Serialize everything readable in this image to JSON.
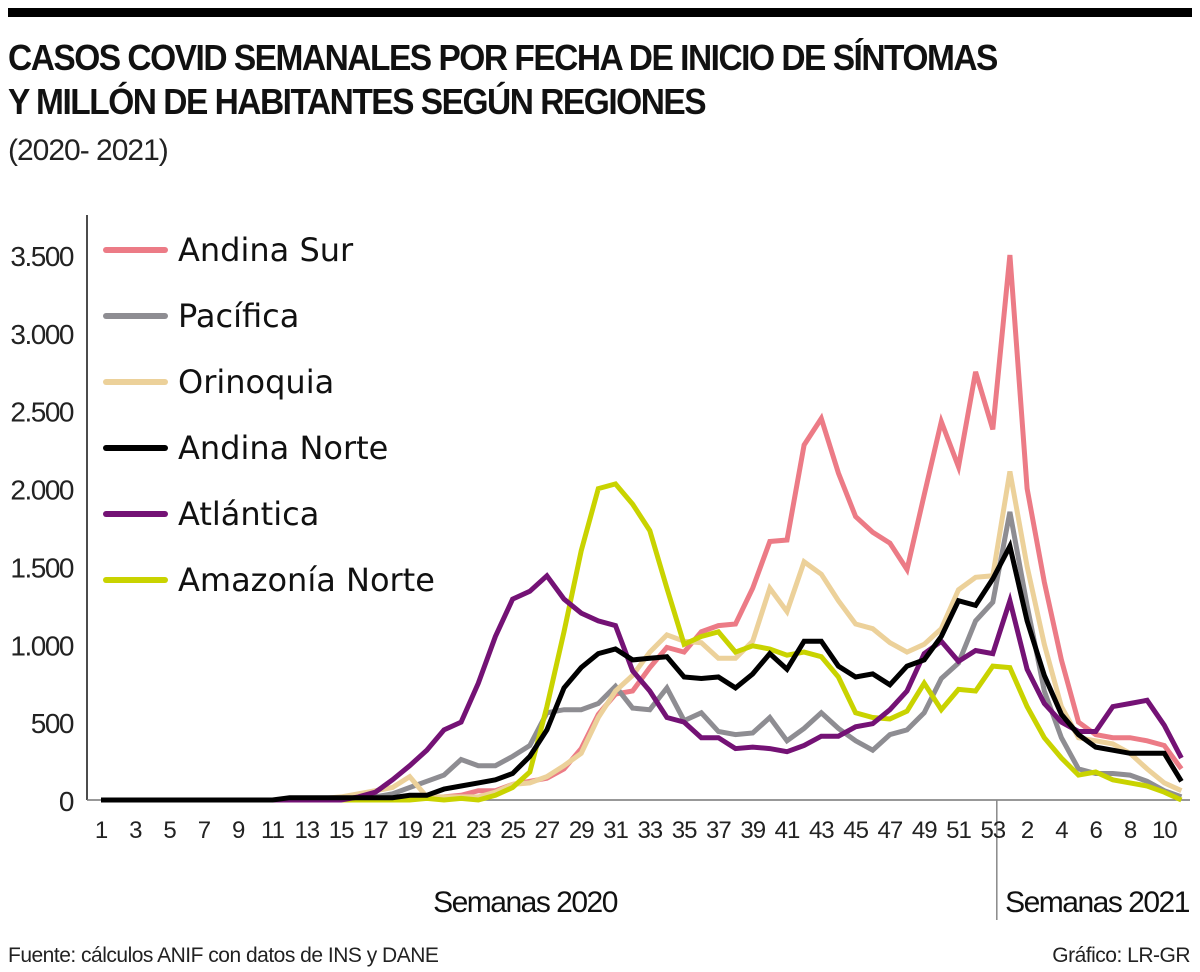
{
  "header": {
    "title_line1": "CASOS COVID SEMANALES POR FECHA DE INICIO DE SÍNTOMAS",
    "title_line2": "Y MILLÓN DE HABITANTES SEGÚN REGIONES",
    "subtitle": "(2020- 2021)"
  },
  "footer": {
    "source": "Fuente: cálculos ANIF con datos de INS y DANE",
    "credit": "Gráfico: LR-GR"
  },
  "chart_data": {
    "type": "line",
    "title": "CASOS COVID SEMANALES POR FECHA DE INICIO DE SÍNTOMAS Y MILLÓN DE HABITANTES SEGÚN REGIONES",
    "subtitle": "(2020- 2021)",
    "xlabel_groups": [
      "Semanas 2020",
      "Semanas 2021"
    ],
    "ylabel": "",
    "ylim": [
      0,
      3500
    ],
    "yticks": [
      0,
      500,
      1000,
      1500,
      2000,
      2500,
      3000,
      3500
    ],
    "ytick_labels": [
      "0",
      "500",
      "1.000",
      "1.500",
      "2.000",
      "2.500",
      "3.000",
      "3.500"
    ],
    "xtick_labels_2020": [
      "1",
      "3",
      "5",
      "7",
      "9",
      "11",
      "13",
      "15",
      "17",
      "19",
      "21",
      "23",
      "25",
      "27",
      "29",
      "31",
      "33",
      "35",
      "37",
      "39",
      "41",
      "43",
      "45",
      "47",
      "49",
      "51",
      "53"
    ],
    "xtick_labels_2021": [
      "2",
      "4",
      "6",
      "8",
      "10"
    ],
    "x_weeks_2020": 53,
    "x_weeks_2021": 11,
    "grid": false,
    "legend_position": "top-left",
    "series": [
      {
        "name": "Andina Sur",
        "color": "#ec7b86",
        "values": [
          0,
          0,
          0,
          0,
          0,
          0,
          0,
          0,
          0,
          0,
          0,
          0,
          0,
          0,
          5,
          5,
          5,
          5,
          10,
          15,
          20,
          30,
          60,
          60,
          100,
          120,
          140,
          200,
          330,
          550,
          680,
          700,
          850,
          980,
          950,
          1080,
          1120,
          1130,
          1360,
          1660,
          1670,
          2280,
          2450,
          2100,
          1820,
          1720,
          1650,
          1480,
          1960,
          2430,
          2140,
          2750,
          2380,
          3500,
          2000,
          1400,
          900,
          500,
          420,
          400,
          400,
          380,
          350,
          200,
          100
        ]
      },
      {
        "name": "Pacífica",
        "color": "#8e8d92",
        "values": [
          0,
          0,
          0,
          0,
          0,
          0,
          0,
          0,
          0,
          0,
          0,
          0,
          0,
          0,
          0,
          10,
          20,
          40,
          80,
          120,
          160,
          260,
          220,
          220,
          280,
          350,
          560,
          580,
          580,
          620,
          730,
          590,
          580,
          720,
          510,
          560,
          440,
          420,
          430,
          530,
          380,
          460,
          560,
          460,
          380,
          320,
          420,
          450,
          560,
          780,
          880,
          1150,
          1270,
          1850,
          1250,
          700,
          400,
          200,
          170,
          170,
          160,
          120,
          60,
          20
        ]
      },
      {
        "name": "Orinoquia",
        "color": "#ecd19a",
        "values": [
          0,
          0,
          0,
          0,
          0,
          0,
          0,
          0,
          0,
          0,
          0,
          0,
          0,
          10,
          20,
          40,
          60,
          80,
          150,
          20,
          20,
          20,
          20,
          50,
          100,
          110,
          150,
          220,
          300,
          530,
          700,
          800,
          950,
          1060,
          1020,
          1010,
          910,
          910,
          1020,
          1360,
          1210,
          1530,
          1450,
          1280,
          1130,
          1100,
          1010,
          950,
          1000,
          1100,
          1350,
          1430,
          1440,
          2110,
          1500,
          1000,
          600,
          400,
          380,
          360,
          300,
          200,
          110,
          60
        ]
      },
      {
        "name": "Andina Norte",
        "color": "#000000",
        "values": [
          0,
          0,
          0,
          0,
          0,
          0,
          0,
          0,
          0,
          0,
          0,
          15,
          15,
          15,
          15,
          15,
          15,
          15,
          30,
          30,
          70,
          90,
          110,
          130,
          170,
          280,
          450,
          720,
          850,
          940,
          970,
          900,
          910,
          920,
          790,
          780,
          790,
          720,
          810,
          940,
          840,
          1020,
          1020,
          860,
          790,
          810,
          740,
          860,
          900,
          1050,
          1280,
          1250,
          1420,
          1630,
          1150,
          800,
          550,
          420,
          340,
          320,
          300,
          300,
          300,
          120,
          0
        ]
      },
      {
        "name": "Atlántica",
        "color": "#741275",
        "values": [
          0,
          0,
          0,
          0,
          0,
          0,
          0,
          0,
          0,
          0,
          0,
          0,
          0,
          0,
          0,
          20,
          50,
          130,
          220,
          320,
          450,
          500,
          750,
          1050,
          1290,
          1340,
          1440,
          1290,
          1200,
          1150,
          1120,
          830,
          700,
          530,
          500,
          400,
          400,
          330,
          340,
          330,
          310,
          350,
          410,
          410,
          470,
          490,
          580,
          700,
          940,
          1020,
          890,
          960,
          940,
          1280,
          840,
          620,
          500,
          440,
          440,
          600,
          620,
          640,
          480,
          270
        ]
      },
      {
        "name": "Amazonía Norte",
        "color": "#c9d300",
        "values": [
          0,
          0,
          0,
          0,
          0,
          0,
          0,
          0,
          0,
          0,
          0,
          0,
          0,
          0,
          0,
          0,
          0,
          0,
          0,
          10,
          0,
          10,
          0,
          30,
          80,
          180,
          600,
          1080,
          1600,
          2000,
          2030,
          1900,
          1730,
          1360,
          1000,
          1050,
          1080,
          950,
          990,
          970,
          930,
          950,
          920,
          790,
          560,
          530,
          520,
          570,
          750,
          580,
          710,
          700,
          860,
          850,
          600,
          400,
          270,
          160,
          180,
          130,
          110,
          90,
          50,
          0
        ]
      }
    ]
  }
}
